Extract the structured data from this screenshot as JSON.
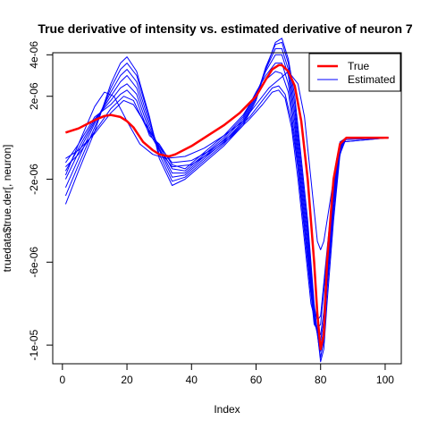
{
  "chart_data": {
    "type": "line",
    "title": "True derivative of intensity vs. estimated derivative of neuron 7",
    "xlabel": "Index",
    "ylabel": "truedata$true.der[, neuron]",
    "xlim": [
      -3,
      105
    ],
    "ylim": [
      -1.09e-05,
      4.1e-06
    ],
    "x_ticks": [
      {
        "value": 0,
        "label": "0"
      },
      {
        "value": 20,
        "label": "20"
      },
      {
        "value": 40,
        "label": "40"
      },
      {
        "value": 60,
        "label": "60"
      },
      {
        "value": 80,
        "label": "80"
      },
      {
        "value": 100,
        "label": "100"
      }
    ],
    "y_ticks": [
      {
        "value": 4e-06,
        "label": "4e-06"
      },
      {
        "value": 2e-06,
        "label": "2e-06"
      },
      {
        "value": -2e-06,
        "label": "-2e-06"
      },
      {
        "value": -6e-06,
        "label": "-6e-06"
      },
      {
        "value": -1e-05,
        "label": "-1e-05"
      }
    ],
    "legend": {
      "position": "top-right",
      "entries": [
        {
          "label": "True",
          "color": "#ff0000"
        },
        {
          "label": "Estimated",
          "color": "#0000ff"
        }
      ]
    },
    "colors": {
      "true": "#ff0000",
      "estimated": "#0000ff"
    },
    "series": [
      {
        "name": "True",
        "x": [
          1,
          5,
          10,
          13,
          15,
          18,
          20,
          22,
          25,
          28,
          30,
          33,
          35,
          40,
          45,
          50,
          55,
          60,
          63,
          65,
          67,
          68,
          70,
          72,
          74,
          76,
          78,
          79,
          80,
          81,
          82,
          84,
          86,
          88,
          90,
          95,
          101
        ],
        "y": [
          2.5e-07,
          4.5e-07,
          8.5e-07,
          1.05e-06,
          1.1e-06,
          1e-06,
          8e-07,
          5e-07,
          -2e-07,
          -6e-07,
          -8e-07,
          -9e-07,
          -8e-07,
          -4e-07,
          1e-07,
          6e-07,
          1.2e-06,
          2e-06,
          2.8e-06,
          3.3e-06,
          3.5e-06,
          3.5e-06,
          3.2e-06,
          2.5e-06,
          8e-07,
          -2e-06,
          -6e-06,
          -8.5e-06,
          -1.02e-05,
          -9.5e-06,
          -6e-06,
          -2e-06,
          -3e-07,
          0,
          0,
          0,
          0
        ]
      },
      {
        "name": "",
        "x": [
          1,
          5,
          10,
          15,
          18,
          20,
          23,
          27,
          30,
          34,
          38,
          44,
          50,
          56,
          60,
          63,
          66,
          68,
          70,
          72,
          74,
          76,
          78,
          80,
          81,
          82,
          84,
          86,
          88,
          101
        ],
        "y": [
          -3.2e-06,
          -1.6e-06,
          3e-07,
          2.6e-06,
          3.6e-06,
          3.9e-06,
          3.2e-06,
          1e-06,
          -1e-06,
          -2.3e-06,
          -2e-06,
          -1.2e-06,
          -4e-07,
          6e-07,
          1.8e-06,
          3.3e-06,
          4.6e-06,
          4.8e-06,
          3.8e-06,
          2e-06,
          -1e-06,
          -4e-06,
          -8e-06,
          -1.08e-05,
          -1.02e-05,
          -8e-06,
          -4e-06,
          -8e-07,
          0,
          0
        ]
      },
      {
        "name": "",
        "x": [
          1,
          5,
          10,
          15,
          18,
          20,
          23,
          27,
          30,
          34,
          38,
          44,
          50,
          56,
          60,
          63,
          66,
          68,
          70,
          72,
          74,
          76,
          78,
          80,
          81,
          82,
          84,
          86,
          88,
          101
        ],
        "y": [
          -2.8e-06,
          -1.3e-06,
          5e-07,
          2.4e-06,
          3.3e-06,
          3.6e-06,
          3e-06,
          9e-07,
          -8e-07,
          -2.1e-06,
          -1.9e-06,
          -1.1e-06,
          -3e-07,
          7e-07,
          1.9e-06,
          3.4e-06,
          4.5e-06,
          4.6e-06,
          3.6e-06,
          1.6e-06,
          -1.4e-06,
          -4.4e-06,
          -8.4e-06,
          -1.06e-05,
          -9.8e-06,
          -7.4e-06,
          -3.6e-06,
          -6e-07,
          0,
          0
        ]
      },
      {
        "name": "",
        "x": [
          1,
          5,
          10,
          15,
          18,
          20,
          23,
          27,
          30,
          34,
          38,
          44,
          50,
          56,
          60,
          63,
          66,
          68,
          70,
          72,
          74,
          76,
          78,
          80,
          81,
          82,
          84,
          86,
          88,
          101
        ],
        "y": [
          -2.4e-06,
          -1e-06,
          7e-07,
          2.2e-06,
          3e-06,
          3.3e-06,
          2.7e-06,
          7e-07,
          -6e-07,
          -1.9e-06,
          -1.8e-06,
          -1e-06,
          -2e-07,
          8e-07,
          2e-06,
          3.3e-06,
          4.3e-06,
          4.3e-06,
          3.3e-06,
          1.2e-06,
          -1.8e-06,
          -4.8e-06,
          -8.6e-06,
          -1.03e-05,
          -9.6e-06,
          -7e-06,
          -3.2e-06,
          -5e-07,
          0,
          0
        ]
      },
      {
        "name": "",
        "x": [
          1,
          5,
          10,
          15,
          18,
          20,
          23,
          27,
          30,
          34,
          38,
          44,
          50,
          56,
          60,
          63,
          66,
          68,
          70,
          72,
          74,
          76,
          78,
          80,
          81,
          82,
          84,
          86,
          88,
          101
        ],
        "y": [
          -2e-06,
          -7e-07,
          8e-07,
          2e-06,
          2.7e-06,
          3e-06,
          2.4e-06,
          5e-07,
          -5e-07,
          -1.7e-06,
          -1.7e-06,
          -9e-07,
          -1e-07,
          9e-07,
          2.1e-06,
          3.2e-06,
          4e-06,
          4e-06,
          3e-06,
          8e-07,
          -2.2e-06,
          -5.2e-06,
          -8.8e-06,
          -1.01e-05,
          -9.2e-06,
          -6.6e-06,
          -2.9e-06,
          -4e-07,
          0,
          0
        ]
      },
      {
        "name": "",
        "x": [
          1,
          5,
          10,
          15,
          18,
          20,
          23,
          27,
          30,
          34,
          38,
          44,
          50,
          56,
          60,
          63,
          66,
          68,
          70,
          72,
          74,
          76,
          78,
          80,
          81,
          82,
          84,
          86,
          88,
          101
        ],
        "y": [
          -1.6e-06,
          -5e-07,
          9e-07,
          1.8e-06,
          2.4e-06,
          2.6e-06,
          2.1e-06,
          3e-07,
          -4e-07,
          -1.5e-06,
          -1.6e-06,
          -8e-07,
          0,
          1e-06,
          2.2e-06,
          3e-06,
          3.6e-06,
          3.6e-06,
          2.6e-06,
          4e-07,
          -2.6e-06,
          -5.6e-06,
          -8.8e-06,
          -9.8e-06,
          -8.8e-06,
          -6.2e-06,
          -2.6e-06,
          -3e-07,
          0,
          0
        ]
      },
      {
        "name": "",
        "x": [
          1,
          5,
          10,
          15,
          18,
          20,
          23,
          27,
          30,
          34,
          38,
          44,
          50,
          56,
          60,
          63,
          66,
          68,
          70,
          72,
          74,
          76,
          78,
          80,
          81,
          82,
          84,
          86,
          88,
          101
        ],
        "y": [
          -1.2e-06,
          -3e-07,
          1e-06,
          1.6e-06,
          2.1e-06,
          2.3e-06,
          1.8e-06,
          1e-07,
          -3e-07,
          -1.3e-06,
          -1.5e-06,
          -7e-07,
          1e-07,
          1.1e-06,
          2.1e-06,
          2.8e-06,
          3.2e-06,
          3.1e-06,
          2.2e-06,
          0,
          -3e-06,
          -6e-06,
          -9e-06,
          -9.5e-06,
          -8.4e-06,
          -5.8e-06,
          -2.3e-06,
          -2e-07,
          0,
          0
        ]
      },
      {
        "name": "",
        "x": [
          1,
          5,
          10,
          13,
          16,
          20,
          24,
          28,
          32,
          38,
          44,
          50,
          56,
          60,
          64,
          67,
          70,
          73,
          75,
          77,
          79,
          80,
          81,
          83,
          85,
          87,
          101
        ],
        "y": [
          -1.8e-06,
          -3e-07,
          1.5e-06,
          2.2e-06,
          2e-06,
          8e-07,
          -3e-07,
          -8e-07,
          -1e-06,
          -9e-07,
          -5e-07,
          1e-07,
          8e-07,
          1.6e-06,
          2.4e-06,
          2.8e-06,
          3.2e-06,
          2.6e-06,
          1e-06,
          -2e-06,
          -5e-06,
          -5.4e-06,
          -5e-06,
          -3e-06,
          -1e-06,
          -1e-07,
          0
        ]
      },
      {
        "name": "",
        "x": [
          1,
          5,
          10,
          15,
          19,
          22,
          26,
          30,
          34,
          40,
          46,
          52,
          58,
          62,
          65,
          67,
          69,
          71,
          73,
          75,
          77,
          79,
          80,
          81,
          83,
          85,
          87,
          101
        ],
        "y": [
          -1e-06,
          -6e-07,
          2e-07,
          1.2e-06,
          1.8e-06,
          1.6e-06,
          6e-07,
          -4e-07,
          -1.2e-06,
          -1.1e-06,
          -6e-07,
          1e-07,
          1e-06,
          1.8e-06,
          2.4e-06,
          2.5e-06,
          2.1e-06,
          8e-07,
          -1.5e-06,
          -4.5e-06,
          -7.5e-06,
          -8.8e-06,
          -8.6e-06,
          -7e-06,
          -3.8e-06,
          -1.4e-06,
          -2e-07,
          0
        ]
      },
      {
        "name": "",
        "x": [
          1,
          5,
          10,
          15,
          19,
          22,
          26,
          30,
          34,
          40,
          46,
          52,
          58,
          62,
          65,
          67,
          69,
          71,
          73,
          75,
          77,
          79,
          80,
          81,
          83,
          85,
          87,
          101
        ],
        "y": [
          -1.4e-06,
          -8e-07,
          3e-07,
          1.4e-06,
          2e-06,
          1.8e-06,
          5e-07,
          -6e-07,
          -1.4e-06,
          -1.3e-06,
          -7e-07,
          0,
          9e-07,
          1.6e-06,
          2.2e-06,
          2.3e-06,
          1.9e-06,
          5e-07,
          -2e-06,
          -5e-06,
          -8e-06,
          -9.2e-06,
          -9e-06,
          -7.4e-06,
          -4e-06,
          -1.5e-06,
          -2e-07,
          0
        ]
      }
    ]
  }
}
